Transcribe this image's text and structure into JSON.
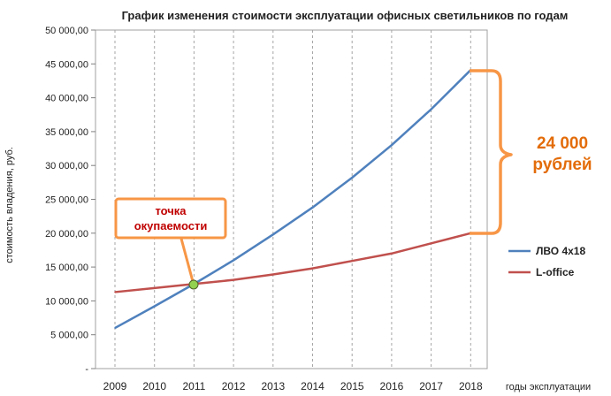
{
  "chart_data": {
    "type": "line",
    "title": "График изменения стоимости эксплуатации офисных светильников по годам",
    "xlabel": "годы эксплуатации",
    "ylabel": "стоимость владения, руб.",
    "ylim": [
      0,
      50000
    ],
    "yticks": [
      "-",
      "5 000,00",
      "10 000,00",
      "15 000,00",
      "20 000,00",
      "25 000,00",
      "30 000,00",
      "35 000,00",
      "40 000,00",
      "45 000,00",
      "50 000,00"
    ],
    "categories": [
      "2009",
      "2010",
      "2011",
      "2012",
      "2013",
      "2014",
      "2015",
      "2016",
      "2017",
      "2018"
    ],
    "grid": "vertical dashed",
    "legend_position": "right",
    "series": [
      {
        "name": "ЛВО 4х18",
        "color": "#4f81bd",
        "values": [
          6000,
          9200,
          12500,
          16000,
          19800,
          23800,
          28200,
          33000,
          38300,
          44100
        ]
      },
      {
        "name": "L-office",
        "color": "#c0504d",
        "values": [
          11300,
          11900,
          12500,
          13100,
          13900,
          14800,
          15900,
          17000,
          18500,
          20000
        ]
      }
    ],
    "annotations": {
      "payback_label": "точка окупаемости",
      "payback_lines": [
        "точка",
        "окупаемости"
      ],
      "difference_label": "24 000 рублей",
      "difference_lines": [
        "24 000",
        "рублей"
      ]
    },
    "colors": {
      "accent": "#f79646",
      "callout_text": "#c00000",
      "difference_text": "#e36c0a",
      "marker": "#92d050"
    }
  }
}
